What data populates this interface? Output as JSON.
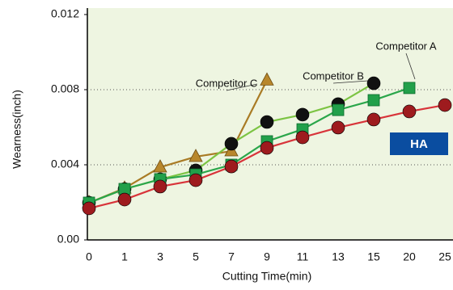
{
  "chart_data": {
    "type": "line",
    "x_label": "Cutting Time(min)",
    "y_label": "Wearness(inch)",
    "categories": [
      "0",
      "1",
      "3",
      "5",
      "7",
      "9",
      "11",
      "13",
      "15",
      "20",
      "25"
    ],
    "ylim": [
      0,
      0.012
    ],
    "yticks": [
      {
        "value": 0,
        "label": "0.00"
      },
      0.004,
      0.008,
      0.012
    ],
    "grid": true,
    "series": [
      {
        "name": "HA",
        "color": "#d8343a",
        "marker": "circle",
        "marker_color": "#9e1b1e",
        "values": [
          0.00168,
          0.00215,
          0.00284,
          0.00318,
          0.00391,
          0.0049,
          0.00546,
          0.00598,
          0.00641,
          0.00684,
          0.00718
        ]
      },
      {
        "name": "Competitor A",
        "color": "#2aa64a",
        "marker": "square",
        "marker_color": "#22a04a",
        "values": [
          0.00198,
          0.00271,
          0.00323,
          0.00348,
          0.004,
          0.00525,
          0.00589,
          0.00692,
          0.00744,
          0.00809,
          null
        ]
      },
      {
        "name": "Competitor B",
        "color": "#7cc443",
        "marker": "circle",
        "marker_color": "#111111",
        "values": [
          0.00198,
          0.00271,
          0.00323,
          0.0037,
          0.00512,
          0.00628,
          0.00667,
          0.00723,
          0.00834,
          null,
          null
        ]
      },
      {
        "name": "Competitor C",
        "color": "#a97b25",
        "marker": "triangle",
        "marker_color": "#b8872c",
        "values": [
          0.00198,
          0.00275,
          0.00387,
          0.00443,
          0.00473,
          0.0085,
          null,
          null,
          null,
          null,
          null
        ]
      }
    ]
  }
}
